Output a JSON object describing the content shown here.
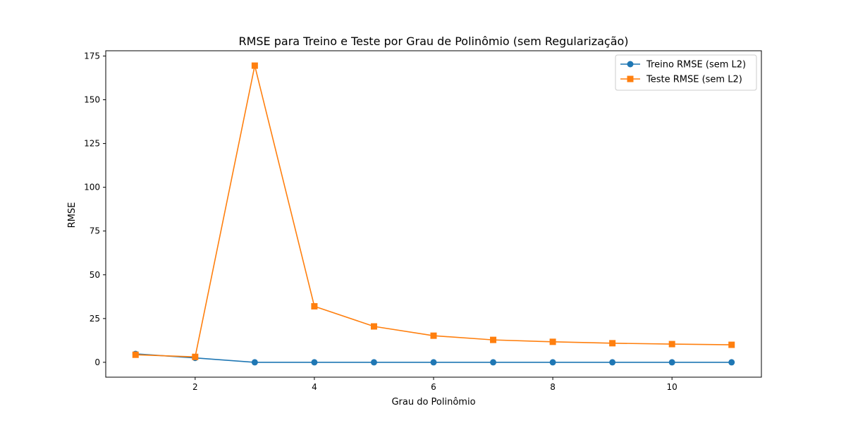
{
  "chart_data": {
    "type": "line",
    "title": "RMSE para Treino e Teste por Grau de Polinômio (sem Regularização)",
    "xlabel": "Grau do Polinômio",
    "ylabel": "RMSE",
    "x": [
      1,
      2,
      3,
      4,
      5,
      6,
      7,
      8,
      9,
      10,
      11
    ],
    "xlim": [
      0.5,
      11.5
    ],
    "ylim": [
      -8.5,
      178
    ],
    "xticks": [
      2,
      4,
      6,
      8,
      10
    ],
    "yticks": [
      0,
      25,
      50,
      75,
      100,
      125,
      150,
      175
    ],
    "grid": false,
    "legend_position": "top-right",
    "series": [
      {
        "name": "Treino RMSE (sem L2)",
        "color": "#1f77b4",
        "marker": "circle",
        "values": [
          4.8,
          2.5,
          0.0,
          0.0,
          0.0,
          0.0,
          0.0,
          0.0,
          0.0,
          0.0,
          0.0
        ]
      },
      {
        "name": "Teste RMSE (sem L2)",
        "color": "#ff7f0e",
        "marker": "square",
        "values": [
          4.3,
          3.1,
          169.5,
          32.0,
          20.5,
          15.2,
          12.8,
          11.7,
          10.9,
          10.4,
          10.0
        ]
      }
    ]
  }
}
